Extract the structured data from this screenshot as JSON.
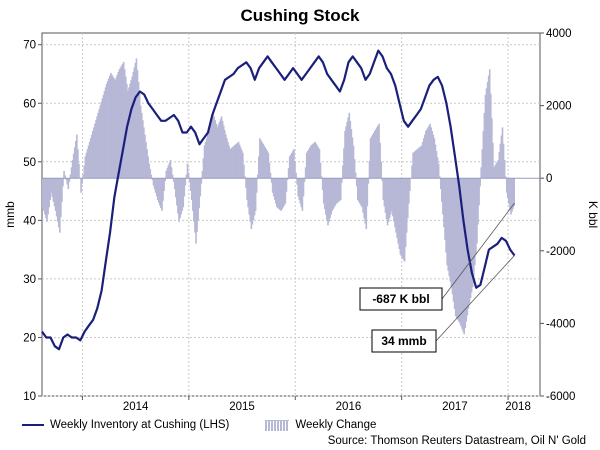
{
  "chart_data": {
    "type": "line",
    "title": "Cushing Stock",
    "ylabel_left": "mmb",
    "ylabel_right": "K bbl",
    "y_left_ticks": [
      "10",
      "20",
      "30",
      "40",
      "50",
      "60",
      "70"
    ],
    "y_right_ticks": [
      "-6000",
      "-4000",
      "-2000",
      "0",
      "2000",
      "4000"
    ],
    "x_ticks": [
      "2014",
      "2015",
      "2016",
      "2017",
      "2018"
    ],
    "ylim_left": [
      10,
      72
    ],
    "ylim_right": [
      -6000,
      4000
    ],
    "xlim": [
      2013.62,
      2018.3
    ],
    "grid": true,
    "series": [
      {
        "name": "Weekly Inventory at Cushing (LHS)",
        "axis": "left",
        "color": "#1a1f7a",
        "points": [
          [
            2013.62,
            21
          ],
          [
            2013.66,
            20
          ],
          [
            2013.7,
            20
          ],
          [
            2013.74,
            18.5
          ],
          [
            2013.78,
            18
          ],
          [
            2013.82,
            20
          ],
          [
            2013.86,
            20.5
          ],
          [
            2013.9,
            20
          ],
          [
            2013.94,
            20
          ],
          [
            2013.98,
            19.5
          ],
          [
            2014.02,
            21
          ],
          [
            2014.06,
            22
          ],
          [
            2014.1,
            23
          ],
          [
            2014.14,
            25
          ],
          [
            2014.18,
            28
          ],
          [
            2014.22,
            33
          ],
          [
            2014.26,
            38
          ],
          [
            2014.3,
            44
          ],
          [
            2014.34,
            48
          ],
          [
            2014.38,
            52
          ],
          [
            2014.42,
            56
          ],
          [
            2014.46,
            59
          ],
          [
            2014.5,
            61
          ],
          [
            2014.54,
            62
          ],
          [
            2014.58,
            61.5
          ],
          [
            2014.62,
            60
          ],
          [
            2014.66,
            59
          ],
          [
            2014.7,
            58
          ],
          [
            2014.74,
            57
          ],
          [
            2014.78,
            57
          ],
          [
            2014.82,
            57.5
          ],
          [
            2014.86,
            58
          ],
          [
            2014.9,
            57
          ],
          [
            2014.94,
            55
          ],
          [
            2014.98,
            55
          ],
          [
            2015.02,
            56
          ],
          [
            2015.06,
            55
          ],
          [
            2015.1,
            53
          ],
          [
            2015.14,
            54
          ],
          [
            2015.18,
            55
          ],
          [
            2015.22,
            58
          ],
          [
            2015.26,
            60
          ],
          [
            2015.3,
            62
          ],
          [
            2015.34,
            64
          ],
          [
            2015.38,
            64.5
          ],
          [
            2015.42,
            65
          ],
          [
            2015.46,
            66
          ],
          [
            2015.5,
            66.5
          ],
          [
            2015.54,
            67
          ],
          [
            2015.58,
            66
          ],
          [
            2015.62,
            64
          ],
          [
            2015.66,
            66
          ],
          [
            2015.7,
            67
          ],
          [
            2015.74,
            68
          ],
          [
            2015.78,
            67
          ],
          [
            2015.82,
            66
          ],
          [
            2015.86,
            65
          ],
          [
            2015.9,
            64
          ],
          [
            2015.94,
            65
          ],
          [
            2015.98,
            66
          ],
          [
            2016.02,
            65
          ],
          [
            2016.06,
            64
          ],
          [
            2016.1,
            65
          ],
          [
            2016.14,
            66
          ],
          [
            2016.18,
            67
          ],
          [
            2016.22,
            68
          ],
          [
            2016.26,
            67
          ],
          [
            2016.3,
            65
          ],
          [
            2016.34,
            64
          ],
          [
            2016.38,
            63
          ],
          [
            2016.42,
            62
          ],
          [
            2016.46,
            64
          ],
          [
            2016.5,
            67
          ],
          [
            2016.54,
            68
          ],
          [
            2016.58,
            67
          ],
          [
            2016.62,
            66
          ],
          [
            2016.66,
            64
          ],
          [
            2016.7,
            65
          ],
          [
            2016.74,
            67
          ],
          [
            2016.78,
            69
          ],
          [
            2016.82,
            68
          ],
          [
            2016.86,
            66
          ],
          [
            2016.9,
            65
          ],
          [
            2016.94,
            63
          ],
          [
            2016.98,
            60
          ],
          [
            2017.02,
            57
          ],
          [
            2017.06,
            56
          ],
          [
            2017.1,
            57
          ],
          [
            2017.14,
            58
          ],
          [
            2017.18,
            59
          ],
          [
            2017.22,
            61
          ],
          [
            2017.26,
            63
          ],
          [
            2017.3,
            64
          ],
          [
            2017.34,
            64.5
          ],
          [
            2017.38,
            63
          ],
          [
            2017.42,
            60
          ],
          [
            2017.46,
            56
          ],
          [
            2017.5,
            51
          ],
          [
            2017.54,
            46
          ],
          [
            2017.58,
            40
          ],
          [
            2017.62,
            35
          ],
          [
            2017.66,
            31
          ],
          [
            2017.7,
            28.5
          ],
          [
            2017.74,
            29
          ],
          [
            2017.78,
            32
          ],
          [
            2017.82,
            35
          ],
          [
            2017.86,
            35.5
          ],
          [
            2017.9,
            36
          ],
          [
            2017.94,
            37
          ],
          [
            2017.98,
            36.5
          ],
          [
            2018.02,
            35
          ],
          [
            2018.06,
            34
          ]
        ]
      },
      {
        "name": "Weekly Change",
        "axis": "right",
        "color": "#b7b7d6",
        "points": [
          [
            2013.62,
            -800
          ],
          [
            2013.66,
            -1200
          ],
          [
            2013.7,
            -400
          ],
          [
            2013.74,
            -900
          ],
          [
            2013.78,
            -1500
          ],
          [
            2013.82,
            200
          ],
          [
            2013.86,
            -300
          ],
          [
            2013.9,
            500
          ],
          [
            2013.94,
            1200
          ],
          [
            2013.98,
            -400
          ],
          [
            2014.02,
            600
          ],
          [
            2014.06,
            1000
          ],
          [
            2014.1,
            1400
          ],
          [
            2014.14,
            1800
          ],
          [
            2014.18,
            2200
          ],
          [
            2014.22,
            2600
          ],
          [
            2014.26,
            2900
          ],
          [
            2014.3,
            2700
          ],
          [
            2014.34,
            3000
          ],
          [
            2014.38,
            3200
          ],
          [
            2014.42,
            2400
          ],
          [
            2014.46,
            2800
          ],
          [
            2014.5,
            3300
          ],
          [
            2014.54,
            2000
          ],
          [
            2014.58,
            1200
          ],
          [
            2014.62,
            400
          ],
          [
            2014.66,
            -200
          ],
          [
            2014.7,
            -600
          ],
          [
            2014.74,
            -900
          ],
          [
            2014.78,
            200
          ],
          [
            2014.82,
            500
          ],
          [
            2014.86,
            -300
          ],
          [
            2014.9,
            -1200
          ],
          [
            2014.94,
            -800
          ],
          [
            2014.98,
            400
          ],
          [
            2015.02,
            -600
          ],
          [
            2015.06,
            -1800
          ],
          [
            2015.1,
            -500
          ],
          [
            2015.14,
            900
          ],
          [
            2015.18,
            1300
          ],
          [
            2015.22,
            1800
          ],
          [
            2015.26,
            1400
          ],
          [
            2015.3,
            1700
          ],
          [
            2015.34,
            1200
          ],
          [
            2015.38,
            800
          ],
          [
            2015.42,
            900
          ],
          [
            2015.46,
            1000
          ],
          [
            2015.5,
            700
          ],
          [
            2015.54,
            -600
          ],
          [
            2015.58,
            -1400
          ],
          [
            2015.62,
            -900
          ],
          [
            2015.66,
            1100
          ],
          [
            2015.7,
            900
          ],
          [
            2015.74,
            700
          ],
          [
            2015.78,
            -400
          ],
          [
            2015.82,
            -800
          ],
          [
            2015.86,
            -900
          ],
          [
            2015.9,
            -700
          ],
          [
            2015.94,
            600
          ],
          [
            2015.98,
            800
          ],
          [
            2016.02,
            -500
          ],
          [
            2016.06,
            -900
          ],
          [
            2016.1,
            700
          ],
          [
            2016.14,
            900
          ],
          [
            2016.18,
            1000
          ],
          [
            2016.22,
            800
          ],
          [
            2016.26,
            -700
          ],
          [
            2016.3,
            -1300
          ],
          [
            2016.34,
            -900
          ],
          [
            2016.38,
            -700
          ],
          [
            2016.42,
            -600
          ],
          [
            2016.46,
            1300
          ],
          [
            2016.5,
            1800
          ],
          [
            2016.54,
            900
          ],
          [
            2016.58,
            -600
          ],
          [
            2016.62,
            -800
          ],
          [
            2016.66,
            -1400
          ],
          [
            2016.7,
            1100
          ],
          [
            2016.74,
            1300
          ],
          [
            2016.78,
            1500
          ],
          [
            2016.82,
            -600
          ],
          [
            2016.86,
            -1300
          ],
          [
            2016.9,
            -900
          ],
          [
            2016.94,
            -1500
          ],
          [
            2016.98,
            -2100
          ],
          [
            2017.02,
            -2300
          ],
          [
            2017.06,
            -700
          ],
          [
            2017.1,
            700
          ],
          [
            2017.14,
            800
          ],
          [
            2017.18,
            900
          ],
          [
            2017.22,
            1300
          ],
          [
            2017.26,
            1500
          ],
          [
            2017.3,
            1100
          ],
          [
            2017.34,
            400
          ],
          [
            2017.38,
            -1000
          ],
          [
            2017.42,
            -2400
          ],
          [
            2017.46,
            -3000
          ],
          [
            2017.5,
            -3800
          ],
          [
            2017.54,
            -4000
          ],
          [
            2017.58,
            -4300
          ],
          [
            2017.62,
            -3600
          ],
          [
            2017.66,
            -3000
          ],
          [
            2017.7,
            -1800
          ],
          [
            2017.74,
            300
          ],
          [
            2017.78,
            2300
          ],
          [
            2017.82,
            3000
          ],
          [
            2017.86,
            300
          ],
          [
            2017.9,
            500
          ],
          [
            2017.94,
            1400
          ],
          [
            2017.98,
            -400
          ],
          [
            2018.02,
            -1000
          ],
          [
            2018.06,
            -687
          ]
        ]
      }
    ],
    "annotations": [
      {
        "text": "-687 K bbl"
      },
      {
        "text": "34 mmb"
      }
    ],
    "source": "Source: Thomson Reuters Datastream, Oil N' Gold"
  }
}
